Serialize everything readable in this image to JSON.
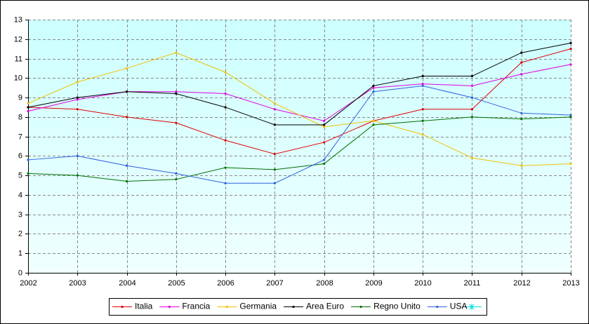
{
  "chart_data": {
    "type": "line",
    "x": [
      2002,
      2003,
      2004,
      2005,
      2006,
      2007,
      2008,
      2009,
      2010,
      2011,
      2012,
      2013
    ],
    "xlim": [
      2002,
      2013
    ],
    "xticks": [
      2002,
      2003,
      2004,
      2005,
      2006,
      2007,
      2008,
      2009,
      2010,
      2011,
      2012,
      2013
    ],
    "ylim": [
      0,
      13
    ],
    "yticks": [
      0,
      1,
      2,
      3,
      4,
      5,
      6,
      7,
      8,
      9,
      10,
      11,
      12,
      13
    ],
    "grid": true,
    "legend": "bottom",
    "series": [
      {
        "name": "Italia",
        "color": "#e00000",
        "values": [
          8.5,
          8.4,
          8.0,
          7.7,
          6.8,
          6.1,
          6.7,
          7.8,
          8.4,
          8.4,
          10.8,
          11.5
        ]
      },
      {
        "name": "Francia",
        "color": "#e000e0",
        "values": [
          8.3,
          8.9,
          9.3,
          9.3,
          9.2,
          8.4,
          7.8,
          9.5,
          9.7,
          9.6,
          10.2,
          10.7
        ]
      },
      {
        "name": "Germania",
        "color": "#f0c000",
        "values": [
          8.7,
          9.8,
          10.5,
          11.3,
          10.3,
          8.7,
          7.5,
          7.8,
          7.1,
          5.9,
          5.5,
          5.6
        ]
      },
      {
        "name": "Area Euro",
        "color": "#000000",
        "values": [
          8.5,
          9.0,
          9.3,
          9.2,
          8.5,
          7.6,
          7.6,
          9.6,
          10.1,
          10.1,
          11.3,
          11.8
        ]
      },
      {
        "name": "Regno Unito",
        "color": "#007000",
        "values": [
          5.1,
          5.0,
          4.7,
          4.8,
          5.4,
          5.3,
          5.6,
          7.6,
          7.8,
          8.0,
          7.9,
          8.0
        ]
      },
      {
        "name": "USA",
        "color": "#3060e0",
        "values": [
          5.8,
          6.0,
          5.5,
          5.1,
          4.6,
          4.6,
          5.8,
          9.3,
          9.6,
          9.0,
          8.2,
          8.1
        ]
      }
    ]
  }
}
